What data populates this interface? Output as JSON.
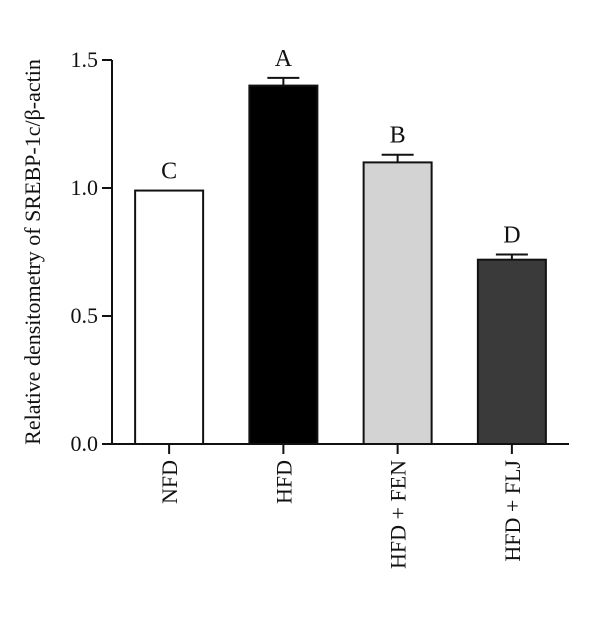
{
  "chart_data": {
    "type": "bar",
    "title": "",
    "xlabel": "",
    "ylabel": "Relative densitometry of SREBP-1c/β-actin",
    "ylim": [
      0,
      1.5
    ],
    "yticks": [
      "0.0",
      "0.5",
      "1.0",
      "1.5"
    ],
    "grid": false,
    "categories": [
      "NFD",
      "HFD",
      "HFD + FEN",
      "HFD + FLJ"
    ],
    "values": [
      0.99,
      1.4,
      1.1,
      0.72
    ],
    "errors": [
      0.0,
      0.03,
      0.03,
      0.02
    ],
    "significance_letters": [
      "C",
      "A",
      "B",
      "D"
    ],
    "bar_colors": [
      "#ffffff",
      "#000000",
      "#d3d3d3",
      "#3a3a3a"
    ]
  }
}
